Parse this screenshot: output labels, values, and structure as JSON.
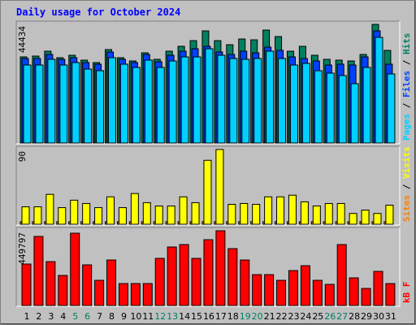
{
  "chart_data": [
    {
      "type": "bar",
      "title": "Daily usage for October 2024",
      "ylim": [
        0,
        44434
      ],
      "yticks": [
        44434
      ],
      "legend_separator": " / ",
      "series": [
        {
          "name": "Hits",
          "color": "#008060",
          "values": [
            32256,
            32560,
            34386,
            31952,
            32864,
            31039,
            30126,
            34995,
            31952,
            30734,
            33777,
            31343,
            34386,
            36212,
            38342,
            41993,
            38342,
            36820,
            38950,
            38646,
            42298,
            39863,
            34386,
            36212,
            32864,
            31343,
            31039,
            30734,
            33169,
            44434,
            34690
          ]
        },
        {
          "name": "Files",
          "color": "#0040ff",
          "values": [
            31647,
            31647,
            33169,
            31343,
            31952,
            30126,
            29517,
            34082,
            31343,
            30126,
            33169,
            30430,
            32864,
            34386,
            35299,
            36212,
            34082,
            33169,
            34386,
            33777,
            35907,
            34690,
            32256,
            31647,
            30734,
            29213,
            29517,
            29213,
            32256,
            41993,
            29517
          ]
        },
        {
          "name": "Pages",
          "color": "#00d0ff",
          "values": [
            29213,
            29213,
            31343,
            29213,
            30126,
            27691,
            27083,
            31952,
            29517,
            28300,
            31039,
            28300,
            30734,
            32256,
            32256,
            35299,
            32864,
            31647,
            31343,
            31647,
            34386,
            31647,
            29213,
            29821,
            27083,
            26170,
            25257,
            22214,
            28300,
            39559,
            25866
          ]
        }
      ]
    },
    {
      "type": "bar",
      "ylim": [
        0,
        90
      ],
      "yticks": [
        90
      ],
      "legend_separator": " / ",
      "series": [
        {
          "name": "Visits",
          "color": "#ffff00",
          "values": [
            21,
            21,
            36,
            20,
            29,
            25,
            20,
            33,
            20,
            37,
            26,
            22,
            22,
            33,
            26,
            77,
            90,
            24,
            25,
            24,
            33,
            33,
            35,
            27,
            22,
            25,
            25,
            13,
            17,
            13,
            23
          ]
        },
        {
          "name": "Sites",
          "color": "#ff8000",
          "values": [
            3,
            3,
            3,
            3,
            3,
            3,
            3,
            3,
            3,
            3,
            3,
            3,
            3,
            3,
            3,
            3,
            3,
            3,
            3,
            3,
            3,
            3,
            3,
            3,
            3,
            3,
            3,
            3,
            3,
            3,
            3
          ]
        }
      ]
    },
    {
      "type": "bar",
      "ylim": [
        0,
        449797
      ],
      "yticks": [
        449797
      ],
      "categories": [
        "1",
        "2",
        "3",
        "4",
        "5",
        "6",
        "7",
        "8",
        "9",
        "10",
        "11",
        "12",
        "13",
        "14",
        "15",
        "16",
        "17",
        "18",
        "19",
        "20",
        "21",
        "22",
        "23",
        "24",
        "25",
        "26",
        "27",
        "28",
        "29",
        "30",
        "31"
      ],
      "category_colors": [
        "#000",
        "#000",
        "#000",
        "#000",
        "#008060",
        "#008060",
        "#000",
        "#000",
        "#000",
        "#000",
        "#000",
        "#008060",
        "#008060",
        "#000",
        "#000",
        "#000",
        "#000",
        "#000",
        "#008060",
        "#008060",
        "#000",
        "#000",
        "#000",
        "#000",
        "#000",
        "#008060",
        "#008060",
        "#000",
        "#000",
        "#000",
        "#000"
      ],
      "series": [
        {
          "name": "kB F",
          "color": "#ff0000",
          "values": [
            249339,
            415565,
            264006,
            180893,
            435121,
            244450,
            151559,
            273784,
            132003,
            132003,
            132003,
            283562,
            352008,
            366675,
            283562,
            396009,
            449797,
            342230,
            273784,
            185782,
            185782,
            151559,
            210227,
            239561,
            151559,
            127114,
            366675,
            166226,
            102669,
            205338,
            132003
          ]
        }
      ]
    }
  ]
}
